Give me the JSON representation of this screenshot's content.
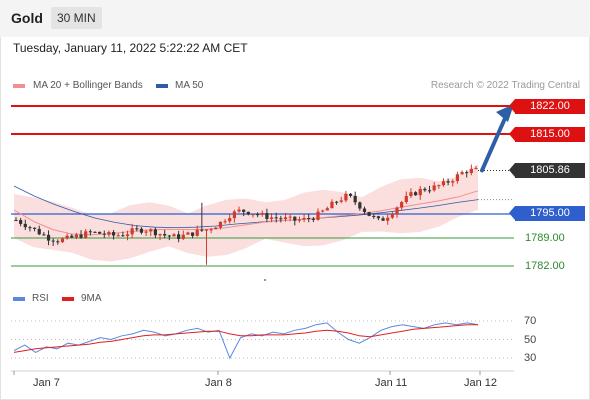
{
  "header": {
    "symbol": "Gold",
    "timeframe": "30 MIN"
  },
  "timestamp": "Tuesday, January 11, 2022 5:22:22 AM CET",
  "legend": {
    "ma20": "MA 20 + Bollinger Bands",
    "ma50": "MA 50",
    "credit": "Research © 2022 Trading Central"
  },
  "levels": {
    "r2": "1822.00",
    "r1": "1815.00",
    "last": "1805.86",
    "pivot": "1795.00",
    "s1": "1789.00",
    "s2": "1782.00"
  },
  "rsi_legend": {
    "rsi": "RSI",
    "ma": "9MA"
  },
  "rsi_ticks": [
    "70",
    "50",
    "30"
  ],
  "x_labels": [
    "Jan 7",
    "Jan 8",
    "Jan 11",
    "Jan 12"
  ],
  "colors": {
    "resistance": "#dd1111",
    "pivot": "#2e5fcc",
    "support": "#3a9a3a",
    "last": "#333333",
    "candle_up": "#d23a2a",
    "candle_down": "#333333",
    "ma20": "#f09090",
    "ma50": "#2e5aa8",
    "band": "#fbdede",
    "rsi": "#5a88e0",
    "rsi_ma": "#e02020"
  },
  "chart_data": {
    "type": "candlestick",
    "instrument": "Gold",
    "timeframe": "30 MIN",
    "ylim": [
      1780,
      1825
    ],
    "x_categories": [
      "Jan 7",
      "Jan 8",
      "Jan 11",
      "Jan 12"
    ],
    "horizontal_levels": [
      1822.0,
      1815.0,
      1805.86,
      1795.0,
      1789.0,
      1782.0
    ],
    "close_path": [
      1793.5,
      1792.2,
      1790.6,
      1789.1,
      1788.4,
      1788.9,
      1789.7,
      1790.4,
      1790.1,
      1789.6,
      1789.9,
      1790.8,
      1791.2,
      1790.5,
      1789.6,
      1789.2,
      1789.8,
      1790.6,
      1791.3,
      1792.6,
      1794.8,
      1795.9,
      1795.4,
      1794.6,
      1794.1,
      1793.8,
      1793.4,
      1793.6,
      1794.4,
      1796.2,
      1798.3,
      1799.6,
      1797.4,
      1794.8,
      1793.1,
      1795.2,
      1797.9,
      1799.9,
      1801.2,
      1801.6,
      1802.5,
      1804.1,
      1805.8,
      1805.9
    ],
    "ma20": [
      1796.0,
      1793.2,
      1791.1,
      1790.0,
      1789.8,
      1790.1,
      1790.6,
      1791.0,
      1791.2,
      1791.1,
      1791.2,
      1791.6,
      1792.3,
      1793.0,
      1793.4,
      1793.7,
      1794.1,
      1794.6,
      1795.1,
      1795.8,
      1796.7,
      1797.5,
      1798.3,
      1799.3,
      1800.8
    ],
    "ma50": [
      1802.0,
      1799.5,
      1797.4,
      1795.6,
      1794.0,
      1792.9,
      1792.1,
      1791.7,
      1791.6,
      1791.7,
      1792.0,
      1792.5,
      1792.9,
      1793.3,
      1793.6,
      1793.9,
      1794.3,
      1794.7,
      1795.2,
      1795.8,
      1796.4,
      1797.1,
      1797.9,
      1798.6
    ],
    "projection": {
      "from": 1805.9,
      "to": 1822.0
    },
    "rsi_panel": {
      "ylim": [
        20,
        80
      ],
      "ticks": [
        70,
        50,
        30
      ],
      "rsi": [
        38,
        44,
        36,
        42,
        40,
        46,
        44,
        48,
        52,
        50,
        54,
        56,
        60,
        58,
        54,
        56,
        60,
        62,
        58,
        60,
        30,
        52,
        56,
        54,
        58,
        56,
        60,
        62,
        66,
        68,
        58,
        50,
        46,
        52,
        60,
        64,
        66,
        64,
        62,
        66,
        68,
        66,
        68,
        66
      ],
      "ma9": [
        36,
        38,
        40,
        41,
        42,
        43,
        44,
        45,
        47,
        48,
        50,
        52,
        54,
        55,
        55,
        56,
        57,
        58,
        59,
        59,
        56,
        54,
        54,
        55,
        55,
        55,
        56,
        57,
        59,
        60,
        59,
        57,
        54,
        53,
        55,
        57,
        59,
        61,
        62,
        63,
        64,
        65,
        66,
        66
      ]
    }
  }
}
